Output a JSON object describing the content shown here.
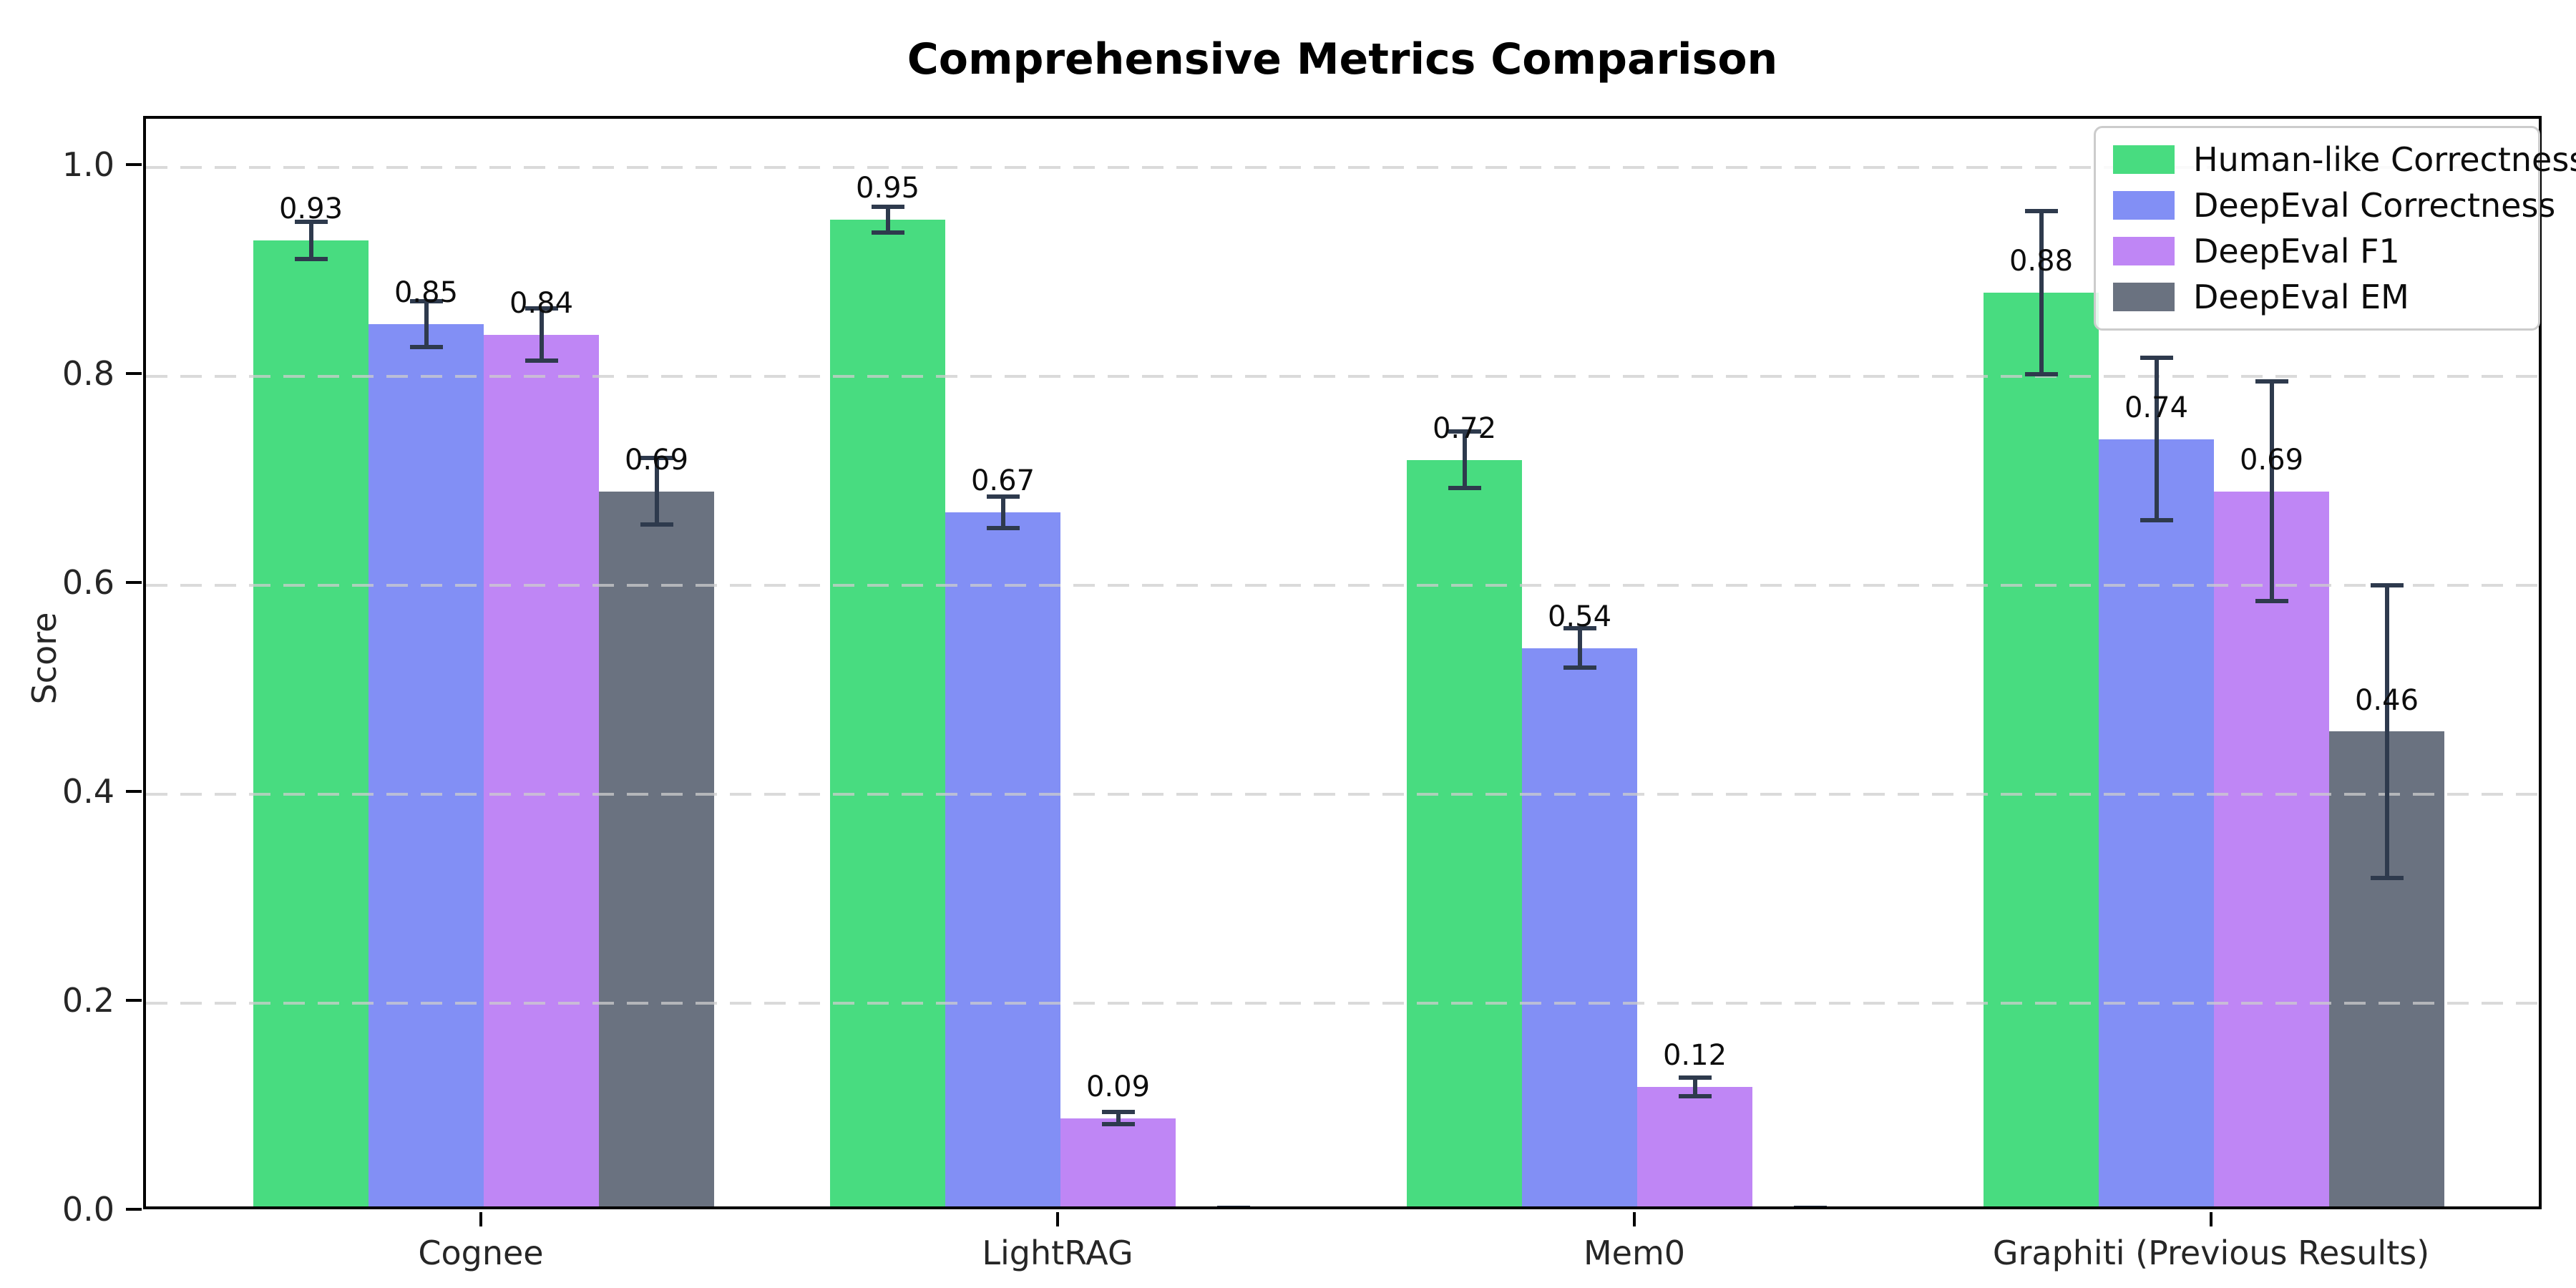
{
  "title": "Comprehensive Metrics Comparison",
  "chart_data": {
    "type": "bar",
    "title": "Comprehensive Metrics Comparison",
    "xlabel": "",
    "ylabel": "Score",
    "ylim": [
      0.0,
      1.05
    ],
    "yticks": [
      0.0,
      0.2,
      0.4,
      0.6,
      0.8,
      1.0
    ],
    "ytick_labels": [
      "0.0",
      "0.2",
      "0.4",
      "0.6",
      "0.8",
      "1.0"
    ],
    "grid": "horizontal-dashed",
    "legend_position": "upper-right",
    "categories": [
      "Cognee",
      "LightRAG",
      "Mem0",
      "Graphiti (Previous Results)"
    ],
    "series": [
      {
        "name": "Human-like Correctness",
        "color": "#48dc80",
        "values": [
          0.93,
          0.95,
          0.72,
          0.88
        ],
        "errors": [
          0.018,
          0.012,
          0.027,
          0.078
        ],
        "labels": [
          "0.93",
          "0.95",
          "0.72",
          "0.88"
        ]
      },
      {
        "name": "DeepEval Correctness",
        "color": "#828ff5",
        "values": [
          0.85,
          0.67,
          0.54,
          0.74
        ],
        "errors": [
          0.022,
          0.015,
          0.019,
          0.078
        ],
        "labels": [
          "0.85",
          "0.67",
          "0.54",
          "0.74"
        ]
      },
      {
        "name": "DeepEval F1",
        "color": "#bf86f5",
        "values": [
          0.84,
          0.09,
          0.12,
          0.69
        ],
        "errors": [
          0.025,
          0.006,
          0.009,
          0.105
        ],
        "labels": [
          "0.84",
          "0.09",
          "0.12",
          "0.69"
        ]
      },
      {
        "name": "DeepEval EM",
        "color": "#6a7280",
        "values": [
          0.69,
          0.0,
          0.0,
          0.46
        ],
        "errors": [
          0.032,
          0.004,
          0.004,
          0.14
        ],
        "labels": [
          "0.69",
          "",
          "",
          "0.46"
        ]
      }
    ],
    "error_bar_color": "#2e3a4d"
  }
}
